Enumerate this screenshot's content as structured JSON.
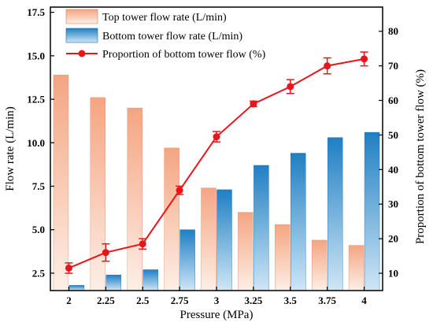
{
  "chart_data": {
    "type": "bar",
    "title": "",
    "xlabel": "Pressure (MPa)",
    "ylabel": "Flow rate (L/min)",
    "y2label": "Proportion of bottom tower flow (%)",
    "categories": [
      "2",
      "2.25",
      "2.5",
      "2.75",
      "3",
      "3.25",
      "3.5",
      "3.75",
      "4"
    ],
    "ylim": [
      1.5,
      17.8
    ],
    "y2lim": [
      5,
      87
    ],
    "yticks": [
      "2.5",
      "5.0",
      "7.5",
      "10.0",
      "12.5",
      "15.0",
      "17.5"
    ],
    "y2ticks": [
      "10",
      "20",
      "30",
      "40",
      "50",
      "60",
      "70",
      "80"
    ],
    "series": [
      {
        "name": "Top tower flow rate (L/min)",
        "kind": "bar",
        "axis": "left",
        "color": "#F4A582",
        "values": [
          13.9,
          12.6,
          12.0,
          9.7,
          7.4,
          6.0,
          5.3,
          4.4,
          4.1
        ]
      },
      {
        "name": "Bottom tower flow rate (L/min)",
        "kind": "bar",
        "axis": "left",
        "color": "#1F7FC4",
        "values": [
          1.8,
          2.4,
          2.7,
          5.0,
          7.3,
          8.7,
          9.4,
          10.3,
          10.6
        ]
      },
      {
        "name": "Proportion of bottom tower flow (%)",
        "kind": "line",
        "axis": "right",
        "color": "#E8161B",
        "values": [
          11.5,
          16,
          18.5,
          34,
          49.5,
          59,
          64,
          70,
          72
        ],
        "errors": [
          1.5,
          2.5,
          1.5,
          1.2,
          1.5,
          0.8,
          2,
          2.3,
          2
        ]
      }
    ],
    "legend_position": "top-left",
    "grid": false
  }
}
